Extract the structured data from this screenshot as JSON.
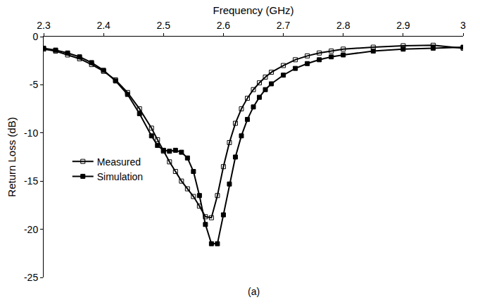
{
  "chart_data": {
    "type": "line",
    "x_title": "Frequency (GHz)",
    "y_title": "Return Loss (dB)",
    "caption": "(a)",
    "x": [
      2.3,
      2.32,
      2.34,
      2.36,
      2.38,
      2.4,
      2.42,
      2.44,
      2.46,
      2.48,
      2.49,
      2.5,
      2.51,
      2.52,
      2.53,
      2.54,
      2.55,
      2.56,
      2.57,
      2.58,
      2.59,
      2.6,
      2.61,
      2.62,
      2.63,
      2.64,
      2.65,
      2.66,
      2.67,
      2.68,
      2.7,
      2.72,
      2.74,
      2.76,
      2.78,
      2.8,
      2.85,
      2.9,
      2.95,
      3.0
    ],
    "series": [
      {
        "name": "Measured",
        "color": "#000000",
        "marker": "square-open",
        "line_style": "solid",
        "values": [
          -1.3,
          -1.5,
          -1.9,
          -2.3,
          -2.9,
          -3.6,
          -4.5,
          -5.8,
          -7.5,
          -9.5,
          -10.7,
          -11.9,
          -13.0,
          -14.0,
          -15.0,
          -15.8,
          -16.6,
          -17.6,
          -18.7,
          -18.8,
          -16.5,
          -13.5,
          -11.0,
          -9.0,
          -7.5,
          -6.4,
          -5.5,
          -4.8,
          -4.2,
          -3.7,
          -3.0,
          -2.4,
          -2.0,
          -1.7,
          -1.5,
          -1.3,
          -1.1,
          -0.95,
          -0.9,
          -1.2
        ]
      },
      {
        "name": "Simulation",
        "color": "#000000",
        "marker": "square",
        "line_style": "solid",
        "values": [
          -1.2,
          -1.4,
          -1.7,
          -2.1,
          -2.7,
          -3.5,
          -4.6,
          -6.0,
          -8.0,
          -10.3,
          -11.3,
          -11.8,
          -11.9,
          -11.8,
          -12.0,
          -12.6,
          -14.0,
          -16.5,
          -19.5,
          -21.5,
          -21.5,
          -18.5,
          -15.3,
          -12.5,
          -10.3,
          -8.6,
          -7.3,
          -6.3,
          -5.5,
          -4.9,
          -4.0,
          -3.3,
          -2.8,
          -2.4,
          -2.1,
          -1.9,
          -1.5,
          -1.3,
          -1.2,
          -1.1
        ]
      }
    ],
    "xlim": [
      2.3,
      3
    ],
    "xticks": [
      2.3,
      2.4,
      2.5,
      2.6,
      2.7,
      2.8,
      2.9,
      3
    ],
    "ylim": [
      -25,
      0
    ],
    "yticks": [
      -25,
      -20,
      -15,
      -10,
      -5,
      0
    ],
    "grid": false,
    "legend": "left"
  }
}
